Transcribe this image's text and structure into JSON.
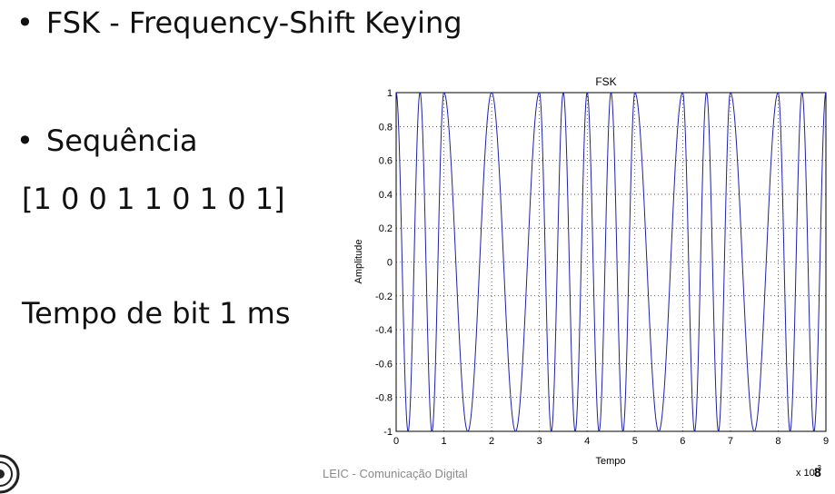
{
  "slide": {
    "title": "FSK - Frequency-Shift Keying",
    "bullet_sequence": "Sequência",
    "sequence_value": "[1 0 0 1 1 0 1 0 1]",
    "bit_time": "Tempo de bit 1 ms",
    "footer": "LEIC - Comunicação Digital",
    "slide_number": "8"
  },
  "chart_data": {
    "type": "line",
    "title": "FSK",
    "xlabel": "Tempo",
    "ylabel": "Amplitude",
    "x_exponent_label": "x 10",
    "x_exponent": "-3",
    "xlim": [
      0,
      9
    ],
    "ylim": [
      -1,
      1
    ],
    "x_ticks": [
      "0",
      "1",
      "2",
      "3",
      "4",
      "5",
      "6",
      "7",
      "8",
      "9"
    ],
    "y_ticks": [
      "1",
      "0.8",
      "0.6",
      "0.4",
      "0.2",
      "0",
      "-0.2",
      "-0.4",
      "-0.6",
      "-0.8",
      "-1"
    ],
    "grid": true,
    "line_color": "#1f1fa8",
    "signal": {
      "form": "cosine",
      "bits": [
        1,
        0,
        0,
        1,
        1,
        0,
        1,
        0,
        1
      ],
      "bit_duration": 1,
      "cycles_per_bit_for_1": 2,
      "cycles_per_bit_for_0": 1
    }
  }
}
